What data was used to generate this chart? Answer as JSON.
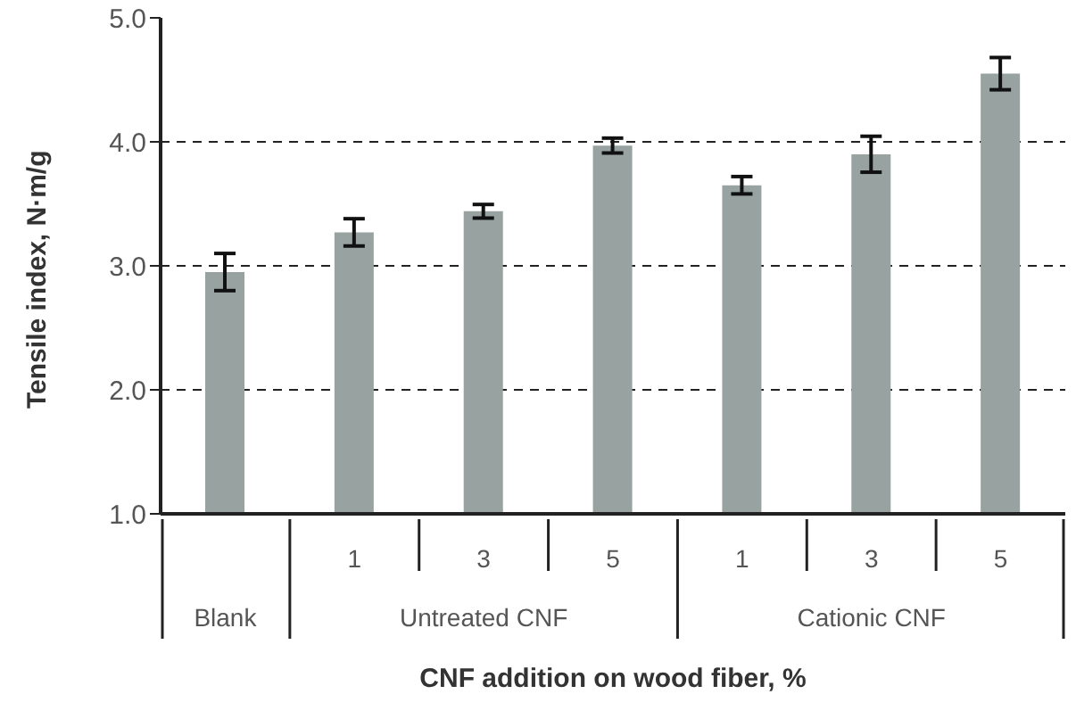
{
  "chart_data": {
    "type": "bar",
    "xlabel": "CNF addition on wood fiber, %",
    "ylabel": "Tensile index, N·m/g",
    "categories": [
      null,
      "1",
      "3",
      "5",
      "1",
      "3",
      "5"
    ],
    "values": [
      2.95,
      3.27,
      3.44,
      3.97,
      3.65,
      3.9,
      4.55
    ],
    "errors": [
      0.15,
      0.11,
      0.055,
      0.06,
      0.07,
      0.145,
      0.13
    ],
    "color": "#98a3a1",
    "ylim": [
      1,
      5
    ],
    "yticks": [
      {
        "value": 1,
        "label": "1.0"
      },
      {
        "value": 2,
        "label": "2.0"
      },
      {
        "value": 3,
        "label": "3.0"
      },
      {
        "value": 4,
        "label": "4.0"
      },
      {
        "value": 5,
        "label": "5.0"
      }
    ],
    "grid": "y",
    "annotations": [
      "Blank",
      "Untreated CNF",
      "Cationic CNF"
    ]
  }
}
